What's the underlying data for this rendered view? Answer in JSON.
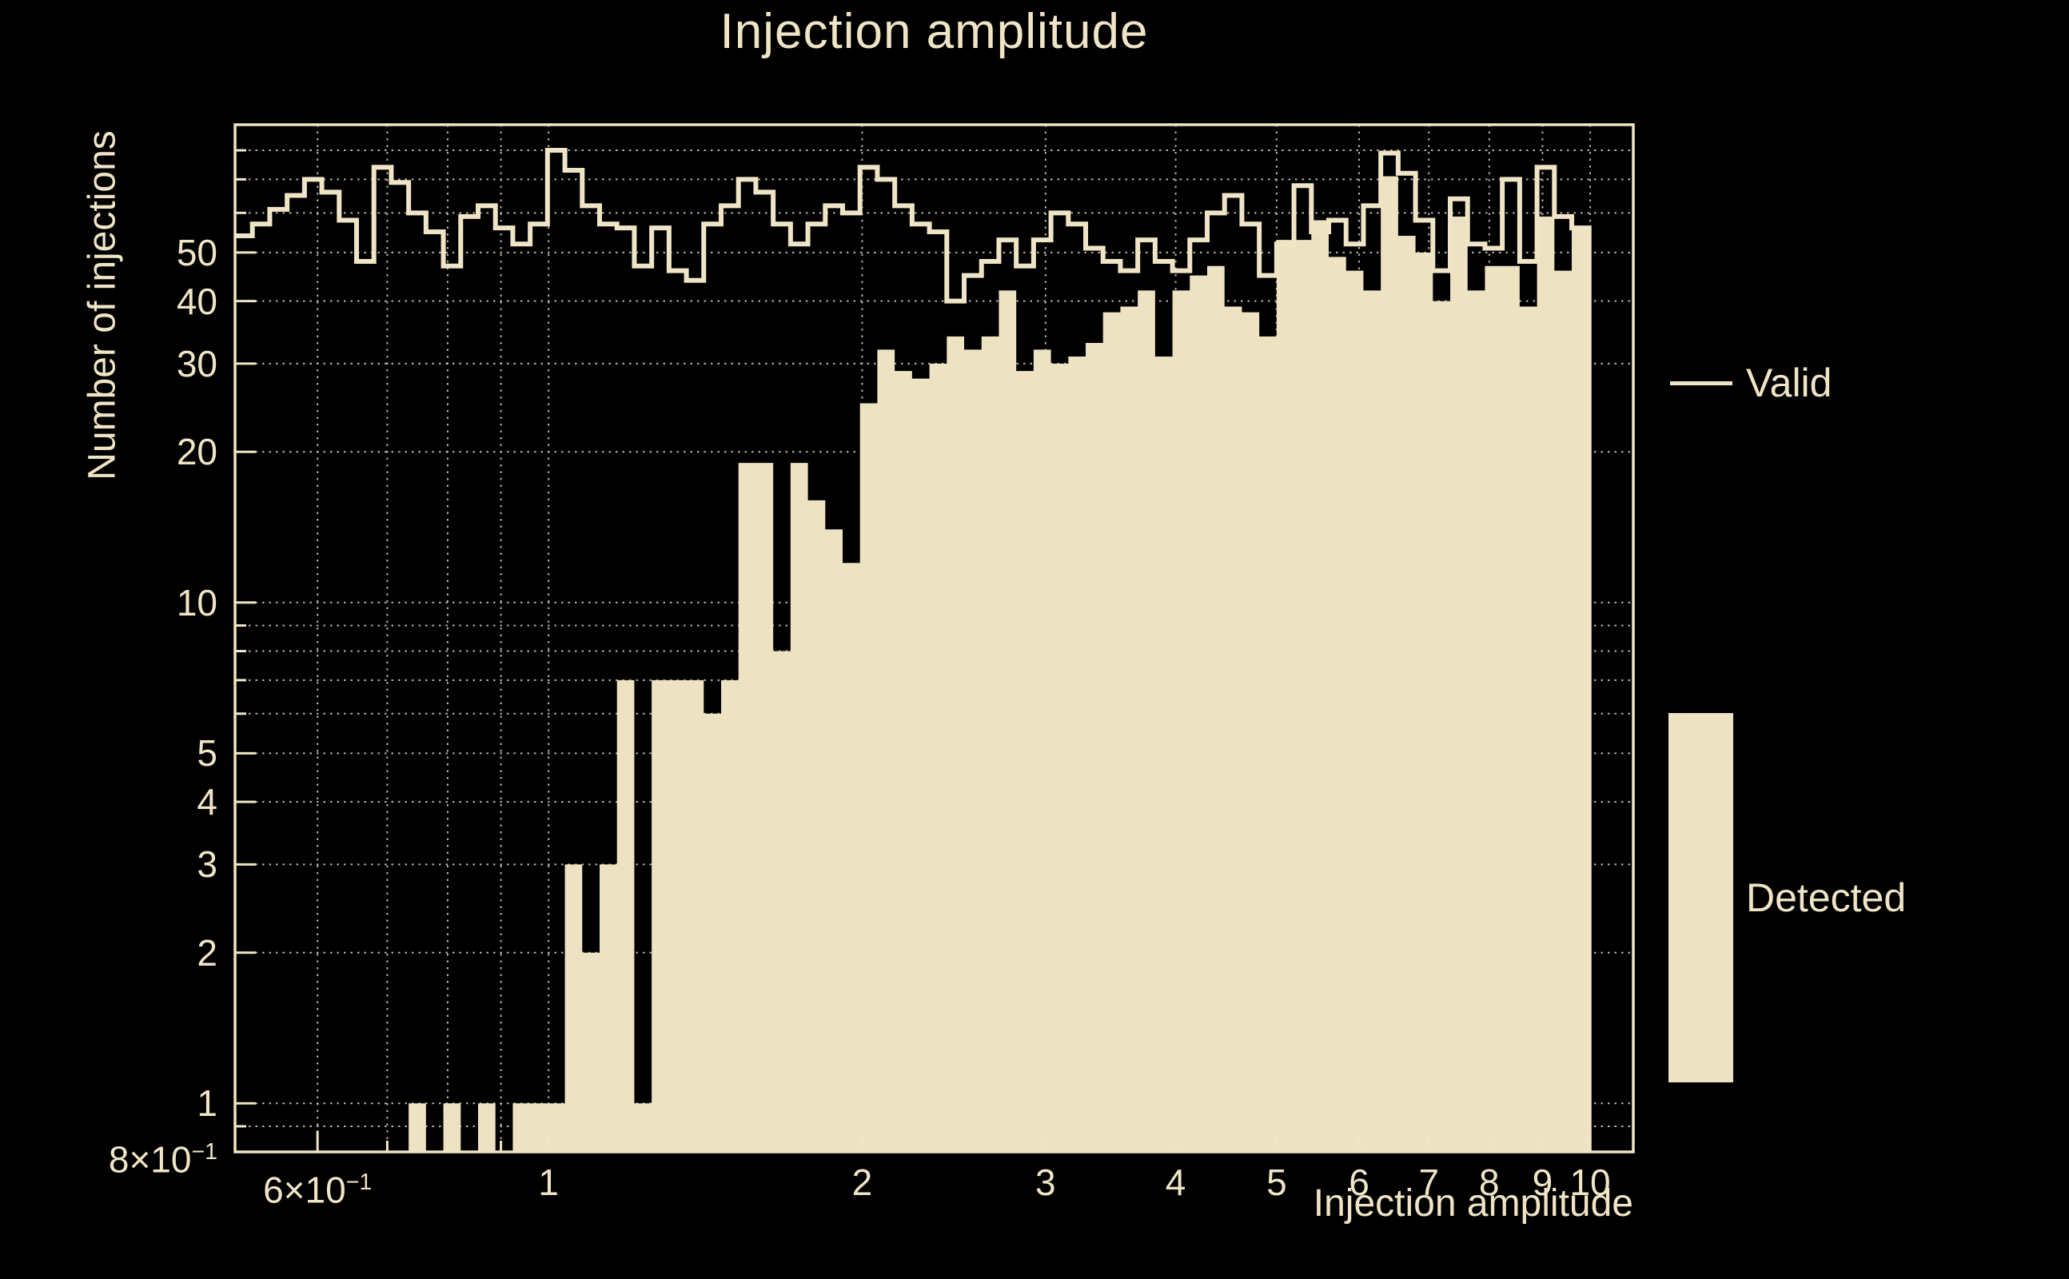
{
  "title": "Injection amplitude",
  "colors": {
    "background": "#000000",
    "foreground": "#EFE5C6",
    "fill": "#EDE3C3",
    "grid": "#CFC8B8"
  },
  "legend": [
    {
      "label": "Valid",
      "type": "line"
    },
    {
      "label": "Detected",
      "type": "fill"
    }
  ],
  "x_axis": {
    "title": "Injection amplitude",
    "scale": "log",
    "tick_labels": [
      {
        "value": 0.6,
        "text": "6×10",
        "sup": "−1"
      },
      {
        "value": 1,
        "text": "1"
      },
      {
        "value": 2,
        "text": "2"
      },
      {
        "value": 3,
        "text": "3"
      },
      {
        "value": 4,
        "text": "4"
      },
      {
        "value": 5,
        "text": "5"
      },
      {
        "value": 6,
        "text": "6"
      },
      {
        "value": 7,
        "text": "7"
      },
      {
        "value": 8,
        "text": "8"
      },
      {
        "value": 9,
        "text": "9"
      },
      {
        "value": 10,
        "text": "10"
      }
    ]
  },
  "y_axis": {
    "title": "Number of injections",
    "scale": "log",
    "tick_labels": [
      {
        "value": 50,
        "text": "50"
      },
      {
        "value": 40,
        "text": "40"
      },
      {
        "value": 30,
        "text": "30"
      },
      {
        "value": 20,
        "text": "20"
      },
      {
        "value": 10,
        "text": "10"
      },
      {
        "value": 5,
        "text": "5"
      },
      {
        "value": 4,
        "text": "4"
      },
      {
        "value": 3,
        "text": "3"
      },
      {
        "value": 2,
        "text": "2"
      },
      {
        "value": 1,
        "text": "1"
      },
      {
        "value": 0.8,
        "text": "8×10",
        "sup": "−1"
      }
    ]
  },
  "chart_data": {
    "type": "bar",
    "subtype": "step-histogram",
    "title": "Injection amplitude",
    "xlabel": "Injection amplitude",
    "ylabel": "Number of injections",
    "x_scale": "log",
    "y_scale": "log",
    "xlim": [
      0.5,
      11
    ],
    "ylim": [
      0.8,
      90
    ],
    "bin_start": 0.5,
    "bins_per_decade": 60,
    "n_bins": 78,
    "grid_x": [
      0.6,
      0.7,
      0.8,
      0.9,
      1,
      2,
      3,
      4,
      5,
      6,
      7,
      8,
      9,
      10
    ],
    "grid_y": [
      0.9,
      1,
      2,
      3,
      4,
      5,
      6,
      7,
      8,
      9,
      10,
      20,
      30,
      40,
      50,
      60,
      70,
      80,
      90
    ],
    "legend_position": "right",
    "series": [
      {
        "name": "Valid",
        "style": "line",
        "values": [
          54,
          57,
          61,
          65,
          70,
          66,
          58,
          48,
          74,
          69,
          60,
          55,
          47,
          59,
          62,
          56,
          52,
          57,
          80,
          73,
          62,
          57,
          56,
          47,
          56,
          46,
          44,
          57,
          62,
          70,
          66,
          57,
          52,
          57,
          62,
          60,
          74,
          70,
          62,
          57,
          55,
          40,
          45,
          48,
          53,
          47,
          53,
          60,
          57,
          51,
          48,
          46,
          53,
          48,
          46,
          53,
          60,
          65,
          57,
          45,
          52,
          68,
          55,
          58,
          52,
          62,
          79,
          72,
          58,
          46,
          64,
          52,
          51,
          70,
          48,
          74,
          59,
          56
        ]
      },
      {
        "name": "Detected",
        "style": "fill",
        "values": [
          0,
          0,
          0,
          0,
          0,
          0,
          0,
          0,
          0,
          0,
          1,
          0,
          1,
          0,
          1,
          0,
          1,
          1,
          1,
          3,
          2,
          3,
          7,
          1,
          7,
          7,
          7,
          6,
          7,
          19,
          19,
          8,
          19,
          16,
          14,
          12,
          25,
          32,
          29,
          28,
          30,
          34,
          32,
          34,
          42,
          29,
          32,
          30,
          31,
          33,
          38,
          39,
          42,
          31,
          42,
          45,
          47,
          39,
          38,
          34,
          53,
          53,
          58,
          49,
          46,
          42,
          71,
          54,
          50,
          40,
          59,
          42,
          47,
          47,
          39,
          59,
          46,
          56
        ]
      }
    ]
  }
}
